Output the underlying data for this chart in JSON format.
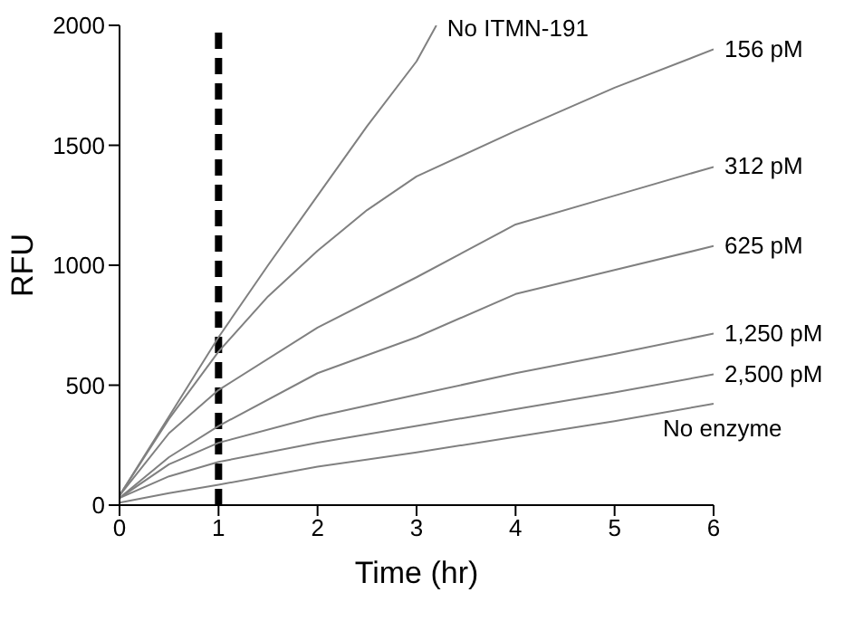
{
  "chart_data": {
    "type": "line",
    "xlabel": "Time (hr)",
    "ylabel": "RFU",
    "xlim": [
      0,
      6
    ],
    "xticks": [
      0,
      1,
      2,
      3,
      4,
      5,
      6
    ],
    "ylim": [
      0,
      2000
    ],
    "yticks": [
      0,
      500,
      1000,
      1500,
      2000
    ],
    "grid": false,
    "legend": false,
    "marker": "none",
    "line_style": "solid",
    "series": [
      {
        "name": "No ITMN-191",
        "color": "#808080",
        "x": [
          0,
          0.5,
          1,
          1.5,
          2,
          2.5,
          3,
          3.2
        ],
        "values": [
          40,
          370,
          700,
          1000,
          1290,
          1580,
          1850,
          2000
        ]
      },
      {
        "name": "156 pM",
        "color": "#808080",
        "x": [
          0,
          0.5,
          1,
          1.5,
          2,
          2.5,
          3,
          4,
          5,
          6
        ],
        "values": [
          40,
          360,
          640,
          870,
          1060,
          1230,
          1370,
          1560,
          1740,
          1900
        ]
      },
      {
        "name": "312 pM",
        "color": "#808080",
        "x": [
          0,
          0.5,
          1,
          2,
          3,
          4,
          5,
          6
        ],
        "values": [
          40,
          300,
          480,
          740,
          950,
          1170,
          1290,
          1410
        ]
      },
      {
        "name": "625 pM",
        "color": "#808080",
        "x": [
          0,
          0.5,
          1,
          2,
          3,
          4,
          5,
          6
        ],
        "values": [
          30,
          200,
          330,
          550,
          700,
          880,
          980,
          1080
        ]
      },
      {
        "name": "1,250 pM",
        "color": "#808080",
        "x": [
          0,
          0.5,
          1,
          2,
          3,
          4,
          5,
          6
        ],
        "values": [
          30,
          170,
          260,
          370,
          460,
          550,
          630,
          715
        ]
      },
      {
        "name": "2,500 pM",
        "color": "#808080",
        "x": [
          0,
          0.5,
          1,
          2,
          3,
          4,
          5,
          6
        ],
        "values": [
          30,
          120,
          180,
          260,
          330,
          400,
          470,
          545
        ]
      },
      {
        "name": "No enzyme",
        "color": "#808080",
        "x": [
          0,
          0.5,
          1,
          2,
          3,
          4,
          5,
          6
        ],
        "values": [
          10,
          50,
          85,
          160,
          220,
          285,
          350,
          423
        ]
      }
    ],
    "ref_lines": [
      {
        "axis": "x",
        "value": 1,
        "label": null,
        "color": "#000000",
        "line_style": "dashed"
      }
    ]
  }
}
